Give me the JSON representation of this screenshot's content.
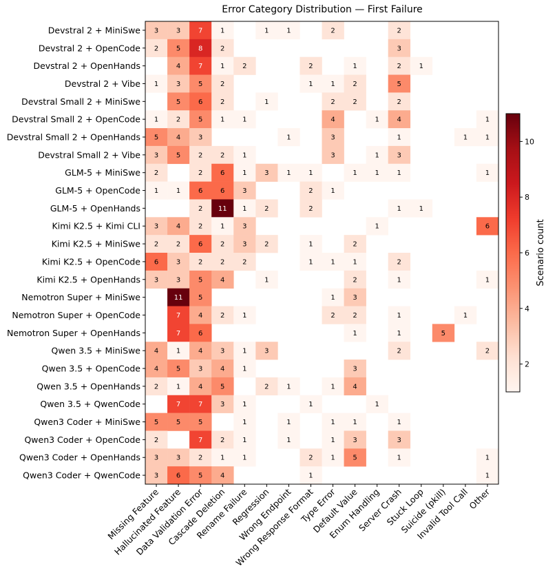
{
  "chart_data": {
    "type": "heatmap",
    "title": "Error Category Distribution — First Failure",
    "colorbar_label": "Scenario count",
    "colorbar_ticks": [
      "2",
      "4",
      "6",
      "8",
      "10"
    ],
    "color_range": [
      1,
      11
    ],
    "colormap": "Reds",
    "rows": [
      "Devstral 2 + MiniSwe",
      "Devstral 2 + OpenCode",
      "Devstral 2 + OpenHands",
      "Devstral 2 + Vibe",
      "Devstral Small 2 + MiniSwe",
      "Devstral Small 2 + OpenCode",
      "Devstral Small 2 + OpenHands",
      "Devstral Small 2 + Vibe",
      "GLM-5 + MiniSwe",
      "GLM-5 + OpenCode",
      "GLM-5 + OpenHands",
      "Kimi K2.5 + Kimi CLI",
      "Kimi K2.5 + MiniSwe",
      "Kimi K2.5 + OpenCode",
      "Kimi K2.5 + OpenHands",
      "Nemotron Super + MiniSwe",
      "Nemotron Super + OpenCode",
      "Nemotron Super + OpenHands",
      "Qwen 3.5 + MiniSwe",
      "Qwen 3.5 + OpenCode",
      "Qwen 3.5 + OpenHands",
      "Qwen 3.5 + QwenCode",
      "Qwen3 Coder + MiniSwe",
      "Qwen3 Coder + OpenCode",
      "Qwen3 Coder + OpenHands",
      "Qwen3 Coder + QwenCode"
    ],
    "columns": [
      "Missing Feature",
      "Hallucinated Feature",
      "Data Validation Error",
      "Cascade Deletion",
      "Rename Failure",
      "Regression",
      "Wrong Endpoint",
      "Wrong Response Format",
      "Type Error",
      "Default Value",
      "Enum Handling",
      "Server Crash",
      "Stuck Loop",
      "Suicide (pkill)",
      "Invalid Tool Call",
      "Other"
    ],
    "values": [
      [
        3,
        3,
        7,
        1,
        0,
        1,
        1,
        0,
        2,
        0,
        0,
        2,
        0,
        0,
        0,
        0
      ],
      [
        2,
        5,
        8,
        2,
        0,
        0,
        0,
        0,
        0,
        0,
        0,
        3,
        0,
        0,
        0,
        0
      ],
      [
        0,
        4,
        7,
        1,
        2,
        0,
        0,
        2,
        0,
        1,
        0,
        2,
        1,
        0,
        0,
        0
      ],
      [
        1,
        3,
        5,
        2,
        0,
        0,
        0,
        1,
        1,
        2,
        0,
        5,
        0,
        0,
        0,
        0
      ],
      [
        0,
        5,
        6,
        2,
        0,
        1,
        0,
        0,
        2,
        2,
        0,
        2,
        0,
        0,
        0,
        0
      ],
      [
        1,
        2,
        5,
        1,
        1,
        0,
        0,
        0,
        4,
        0,
        1,
        4,
        0,
        0,
        0,
        1
      ],
      [
        5,
        4,
        3,
        0,
        0,
        0,
        1,
        0,
        3,
        0,
        0,
        1,
        0,
        0,
        1,
        1
      ],
      [
        3,
        5,
        2,
        2,
        1,
        0,
        0,
        0,
        3,
        0,
        1,
        3,
        0,
        0,
        0,
        0
      ],
      [
        2,
        0,
        2,
        6,
        1,
        3,
        1,
        1,
        0,
        1,
        1,
        1,
        0,
        0,
        0,
        1
      ],
      [
        1,
        1,
        6,
        6,
        3,
        0,
        0,
        2,
        1,
        0,
        0,
        0,
        0,
        0,
        0,
        0
      ],
      [
        0,
        0,
        2,
        11,
        1,
        2,
        0,
        2,
        0,
        0,
        0,
        1,
        1,
        0,
        0,
        0
      ],
      [
        3,
        4,
        2,
        1,
        3,
        0,
        0,
        0,
        0,
        0,
        1,
        0,
        0,
        0,
        0,
        6
      ],
      [
        2,
        2,
        6,
        2,
        3,
        2,
        0,
        1,
        0,
        2,
        0,
        0,
        0,
        0,
        0,
        0
      ],
      [
        6,
        3,
        2,
        2,
        2,
        0,
        0,
        1,
        1,
        1,
        0,
        2,
        0,
        0,
        0,
        0
      ],
      [
        3,
        3,
        5,
        4,
        0,
        1,
        0,
        0,
        0,
        2,
        0,
        1,
        0,
        0,
        0,
        1
      ],
      [
        0,
        11,
        5,
        0,
        0,
        0,
        0,
        0,
        1,
        3,
        0,
        0,
        0,
        0,
        0,
        0
      ],
      [
        0,
        7,
        4,
        2,
        1,
        0,
        0,
        0,
        2,
        2,
        0,
        1,
        0,
        0,
        1,
        0
      ],
      [
        0,
        7,
        6,
        0,
        0,
        0,
        0,
        0,
        0,
        1,
        0,
        1,
        0,
        5,
        0,
        0
      ],
      [
        4,
        1,
        4,
        3,
        1,
        3,
        0,
        0,
        0,
        0,
        0,
        2,
        0,
        0,
        0,
        2
      ],
      [
        4,
        5,
        3,
        4,
        1,
        0,
        0,
        0,
        0,
        3,
        0,
        0,
        0,
        0,
        0,
        0
      ],
      [
        2,
        1,
        4,
        5,
        0,
        2,
        1,
        0,
        1,
        4,
        0,
        0,
        0,
        0,
        0,
        0
      ],
      [
        0,
        7,
        7,
        3,
        1,
        0,
        0,
        1,
        0,
        0,
        1,
        0,
        0,
        0,
        0,
        0
      ],
      [
        5,
        5,
        5,
        0,
        1,
        0,
        1,
        0,
        1,
        1,
        0,
        1,
        0,
        0,
        0,
        0
      ],
      [
        2,
        0,
        7,
        2,
        1,
        0,
        1,
        0,
        1,
        3,
        0,
        3,
        0,
        0,
        0,
        0
      ],
      [
        3,
        3,
        2,
        1,
        1,
        0,
        0,
        2,
        1,
        5,
        0,
        1,
        0,
        0,
        0,
        1
      ],
      [
        3,
        6,
        5,
        4,
        0,
        0,
        0,
        1,
        0,
        0,
        0,
        0,
        0,
        0,
        0,
        1
      ]
    ]
  }
}
